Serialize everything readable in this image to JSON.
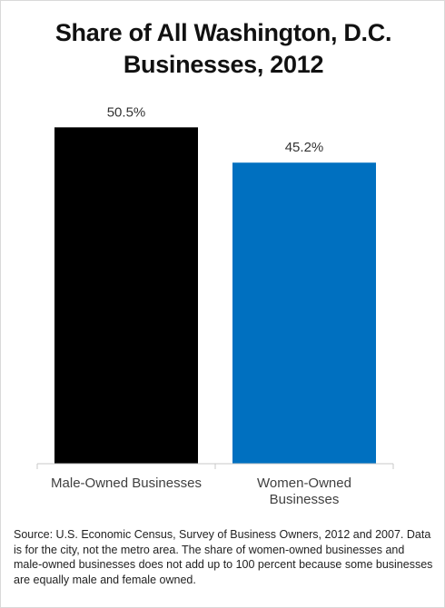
{
  "chart_data": {
    "type": "bar",
    "title_lines": [
      "Share of All Washington, D.C.",
      "Businesses, 2012"
    ],
    "categories": [
      [
        "Male-Owned Businesses"
      ],
      [
        "Women-Owned",
        "Businesses"
      ]
    ],
    "values": [
      50.5,
      45.2
    ],
    "value_labels": [
      "50.5%",
      "45.2%"
    ],
    "colors": [
      "#000000",
      "#0070c0"
    ],
    "ylim": [
      0,
      55
    ],
    "grid": false,
    "legend": "none"
  },
  "source_note": "Source: U.S. Economic Census, Survey of Business Owners, 2012 and 2007. Data is for the city, not the metro area. The share of women-owned businesses and male-owned businesses does not add up to 100 percent because some businesses are equally male and female owned."
}
